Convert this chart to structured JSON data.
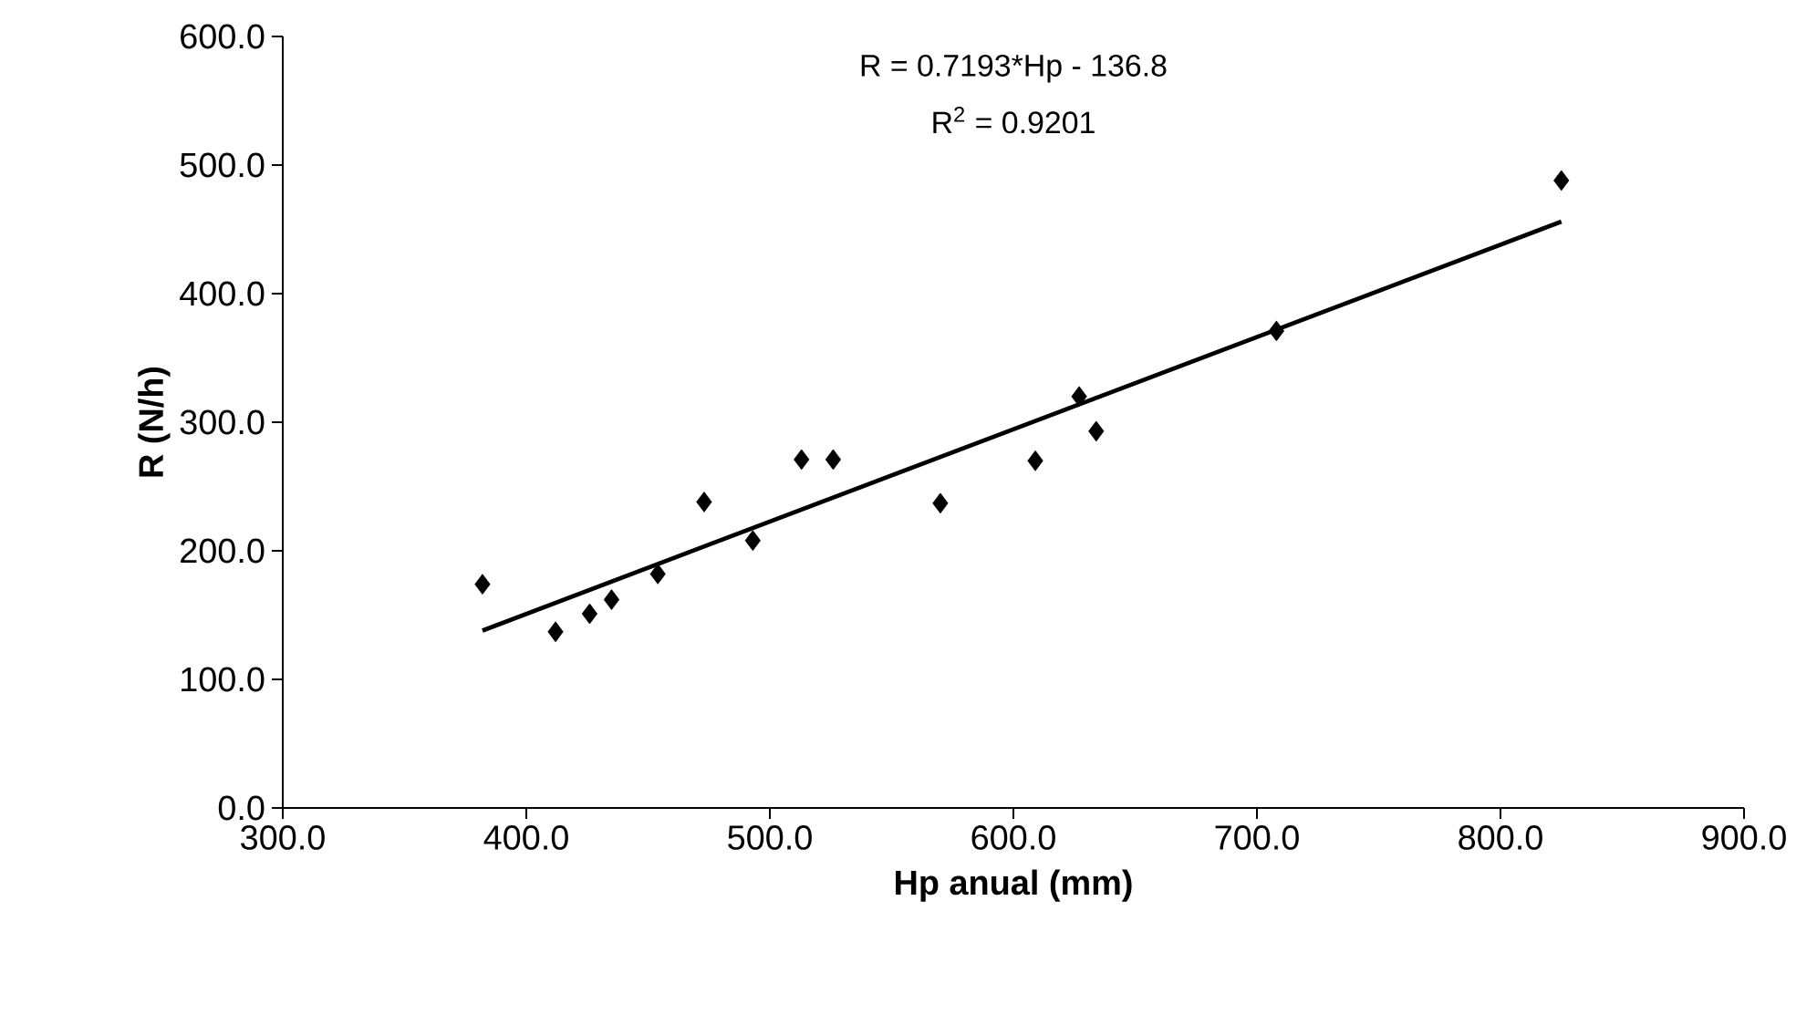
{
  "chart_data": {
    "type": "scatter",
    "xlabel": "Hp anual (mm)",
    "ylabel": "R (N/h)",
    "annotations": [
      "R = 0.7193*Hp - 136.8",
      "R$^{2}$ = 0.9201"
    ],
    "xlim": [
      300,
      900
    ],
    "ylim": [
      0,
      600
    ],
    "xticks": [
      {
        "value": 300,
        "label": "300.0"
      },
      {
        "value": 400,
        "label": "400.0"
      },
      {
        "value": 500,
        "label": "500.0"
      },
      {
        "value": 600,
        "label": "600.0"
      },
      {
        "value": 700,
        "label": "700.0"
      },
      {
        "value": 800,
        "label": "800.0"
      },
      {
        "value": 900,
        "label": "900.0"
      }
    ],
    "yticks": [
      {
        "value": 0,
        "label": "0.0"
      },
      {
        "value": 100,
        "label": "100.0"
      },
      {
        "value": 200,
        "label": "200.0"
      },
      {
        "value": 300,
        "label": "300.0"
      },
      {
        "value": 400,
        "label": "400.0"
      },
      {
        "value": 500,
        "label": "500.0"
      },
      {
        "value": 600,
        "label": "600.0"
      }
    ],
    "series": [
      {
        "marker": "diamond",
        "color": "#000000",
        "x": [
          382,
          412,
          426,
          435,
          454,
          473,
          493,
          513,
          526,
          570,
          609,
          627,
          634,
          708,
          825
        ],
        "values": [
          174,
          137,
          151,
          162,
          182,
          238,
          208,
          271,
          271,
          237,
          270,
          320,
          293,
          371,
          488
        ]
      },
      {
        "type": "line",
        "marker": "none",
        "color": "#000000",
        "x": [
          382,
          825
        ],
        "values": [
          138,
          456
        ]
      }
    ]
  }
}
